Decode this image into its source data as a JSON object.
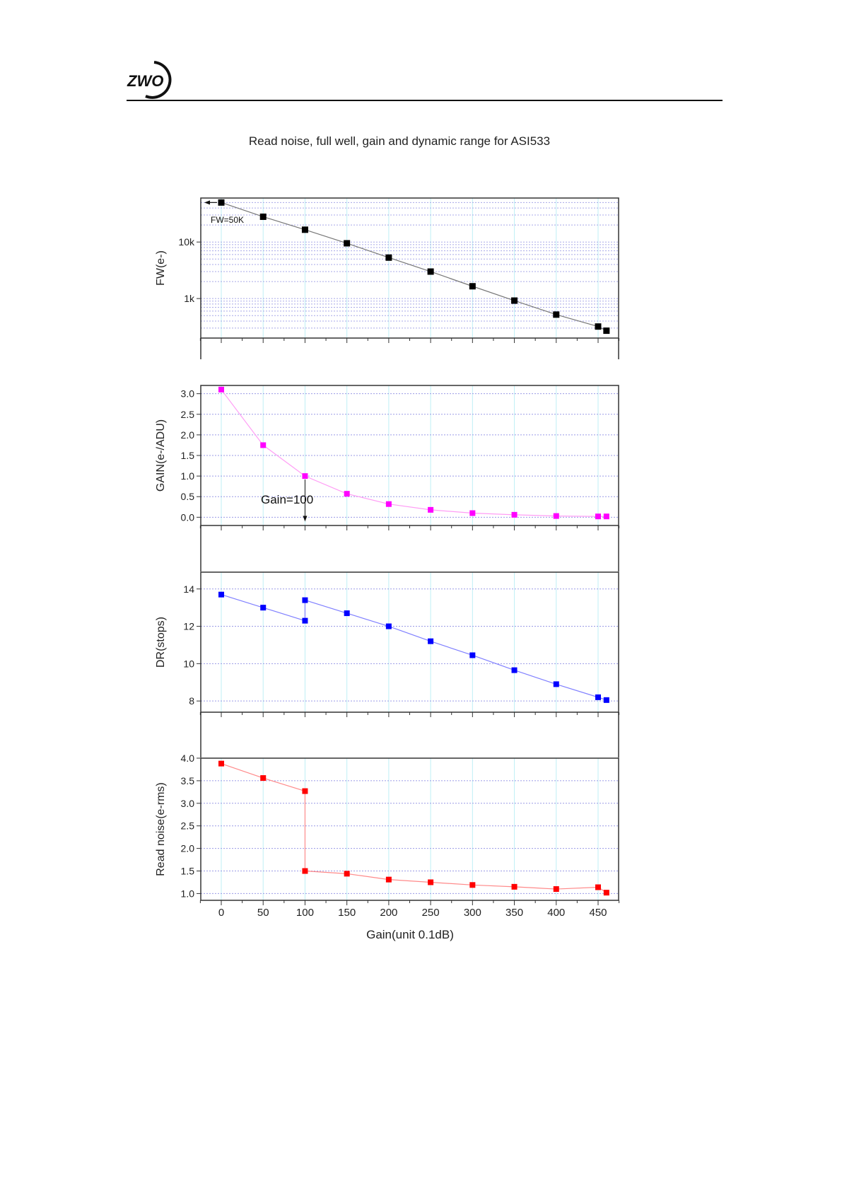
{
  "header": {
    "logo_text": "ZWO"
  },
  "chart_data": {
    "type": "line",
    "title": "Read noise, full well, gain and dynamic range for ASI533",
    "xlabel": "Gain(unit 0.1dB)",
    "xlim": [
      -25,
      475
    ],
    "xticks": [
      0,
      50,
      100,
      150,
      200,
      250,
      300,
      350,
      400,
      450
    ],
    "grid": true,
    "panels": [
      {
        "name": "fw",
        "ylabel": "FW(e-)",
        "yscale": "log",
        "ylim": [
          200,
          60000
        ],
        "yticks": [
          {
            "v": 1000,
            "label": "1k"
          },
          {
            "v": 10000,
            "label": "10k"
          }
        ],
        "color": "#000000",
        "line_color": "#777777",
        "x": [
          0,
          50,
          100,
          150,
          200,
          250,
          300,
          350,
          400,
          450,
          460
        ],
        "y": [
          50000,
          28000,
          16500,
          9500,
          5300,
          3000,
          1650,
          920,
          520,
          320,
          270
        ],
        "annotation": "FW=50K"
      },
      {
        "name": "gain",
        "ylabel": "GAIN(e-/ADU)",
        "yscale": "linear",
        "ylim": [
          -0.2,
          3.2
        ],
        "yticks": [
          {
            "v": 0,
            "label": "0.0"
          },
          {
            "v": 0.5,
            "label": "0.5"
          },
          {
            "v": 1,
            "label": "1.0"
          },
          {
            "v": 1.5,
            "label": "1.5"
          },
          {
            "v": 2,
            "label": "2.0"
          },
          {
            "v": 2.5,
            "label": "2.5"
          },
          {
            "v": 3,
            "label": "3.0"
          }
        ],
        "color": "#ff00ff",
        "line_color": "#ff9cf5",
        "x": [
          0,
          50,
          100,
          150,
          200,
          250,
          300,
          350,
          400,
          450,
          460
        ],
        "y": [
          3.1,
          1.75,
          1.0,
          0.57,
          0.32,
          0.18,
          0.1,
          0.06,
          0.03,
          0.02,
          0.02
        ],
        "annotation": "Gain=100"
      },
      {
        "name": "dr",
        "ylabel": "DR(stops)",
        "yscale": "linear",
        "ylim": [
          7.4,
          14.9
        ],
        "yticks": [
          {
            "v": 8,
            "label": "8"
          },
          {
            "v": 10,
            "label": "10"
          },
          {
            "v": 12,
            "label": "12"
          },
          {
            "v": 14,
            "label": "14"
          }
        ],
        "color": "#0000ff",
        "line_color": "#8080ff",
        "x": [
          0,
          50,
          100,
          100,
          150,
          200,
          250,
          300,
          350,
          400,
          450,
          460
        ],
        "y": [
          13.7,
          13.0,
          12.3,
          13.4,
          12.7,
          12.0,
          11.2,
          10.45,
          9.65,
          8.9,
          8.2,
          8.05
        ]
      },
      {
        "name": "read-noise",
        "ylabel": "Read noise(e-rms)",
        "yscale": "linear",
        "ylim": [
          0.85,
          4.0
        ],
        "yticks": [
          {
            "v": 1,
            "label": "1.0"
          },
          {
            "v": 1.5,
            "label": "1.5"
          },
          {
            "v": 2,
            "label": "2.0"
          },
          {
            "v": 2.5,
            "label": "2.5"
          },
          {
            "v": 3,
            "label": "3.0"
          },
          {
            "v": 3.5,
            "label": "3.5"
          },
          {
            "v": 4,
            "label": "4.0"
          }
        ],
        "color": "#ff0000",
        "line_color": "#ff8a8a",
        "x": [
          0,
          50,
          100,
          100,
          150,
          200,
          250,
          300,
          350,
          400,
          450,
          460
        ],
        "y": [
          3.88,
          3.56,
          3.27,
          1.5,
          1.44,
          1.31,
          1.25,
          1.19,
          1.15,
          1.1,
          1.14,
          1.02
        ]
      }
    ]
  }
}
